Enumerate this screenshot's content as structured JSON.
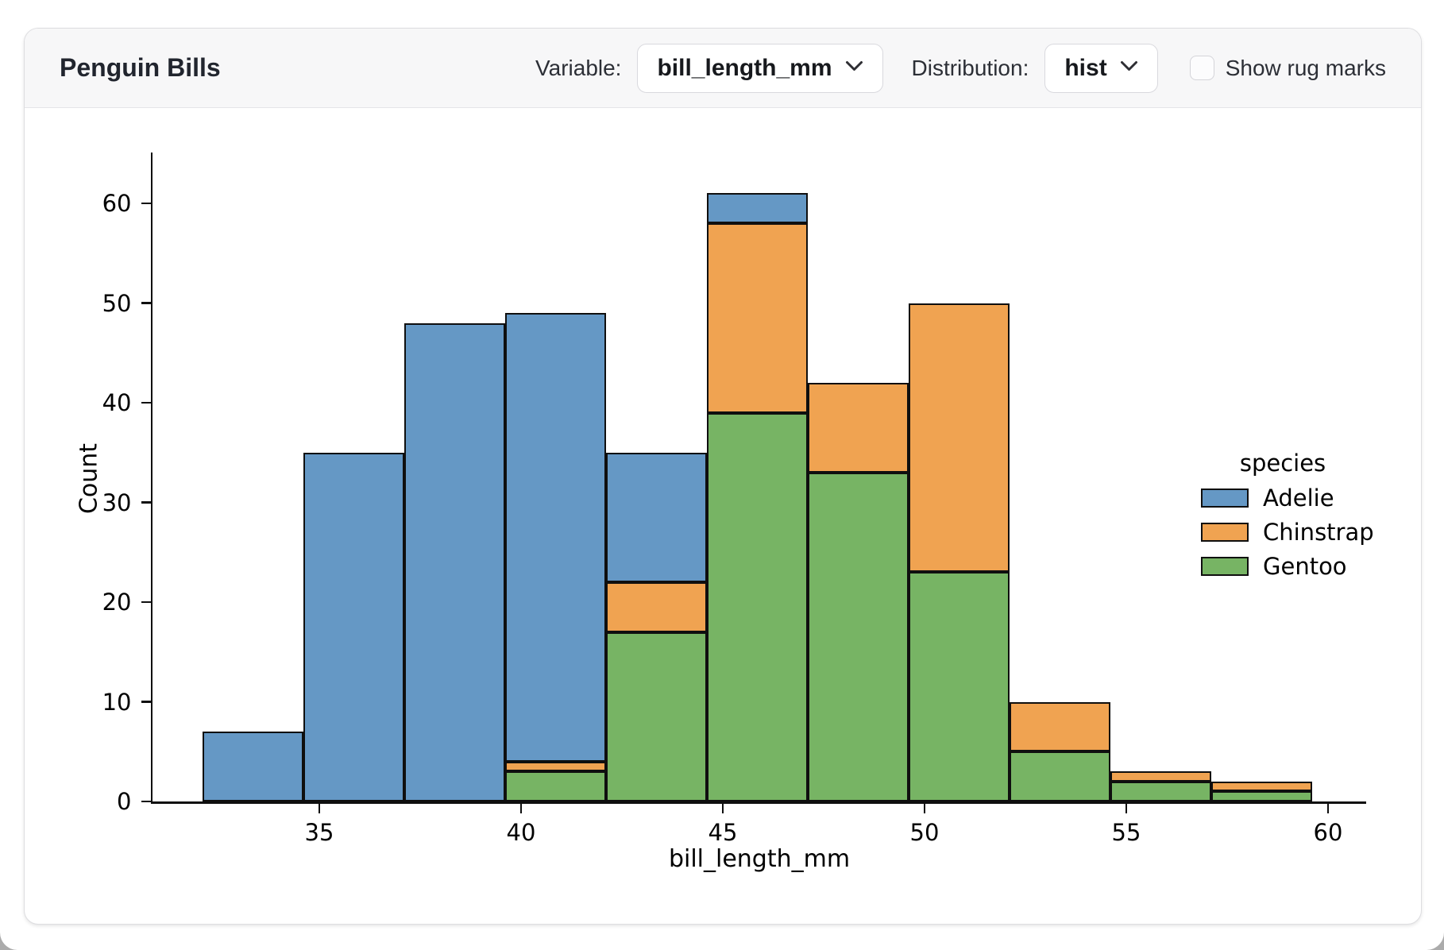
{
  "header": {
    "title": "Penguin Bills",
    "controls": {
      "variable": {
        "label": "Variable:",
        "value": "bill_length_mm"
      },
      "distribution": {
        "label": "Distribution:",
        "value": "hist"
      },
      "rug": {
        "label": "Show rug marks",
        "checked": false
      }
    }
  },
  "chart_data": {
    "type": "bar",
    "subtype": "stacked_histogram",
    "xlabel": "bill_length_mm",
    "ylabel": "Count",
    "bin_edges": [
      32.1,
      34.6,
      37.1,
      39.6,
      42.1,
      44.6,
      47.1,
      49.6,
      52.1,
      54.6,
      57.1,
      59.6
    ],
    "series": [
      {
        "name": "Adelie",
        "color": "#6598c5",
        "values": [
          7,
          35,
          48,
          45,
          13,
          3,
          0,
          0,
          0,
          0,
          0
        ]
      },
      {
        "name": "Chinstrap",
        "color": "#f0a351",
        "values": [
          0,
          0,
          0,
          1,
          5,
          19,
          9,
          27,
          5,
          1,
          1
        ]
      },
      {
        "name": "Gentoo",
        "color": "#77b464",
        "values": [
          0,
          0,
          0,
          3,
          17,
          39,
          33,
          23,
          5,
          2,
          1
        ]
      }
    ],
    "bin_totals": [
      7,
      35,
      48,
      49,
      35,
      61,
      42,
      50,
      10,
      3,
      2
    ],
    "stack_order_bottom_to_top": [
      "Gentoo",
      "Chinstrap",
      "Adelie"
    ],
    "x_ticks": [
      35,
      40,
      45,
      50,
      55,
      60
    ],
    "y_ticks": [
      0,
      10,
      20,
      30,
      40,
      50,
      60
    ],
    "xlim": [
      30.9,
      60.95
    ],
    "ylim": [
      0,
      65
    ],
    "grid": false,
    "edge_color": "#0f0f0f",
    "legend": {
      "title": "species",
      "entries": [
        "Adelie",
        "Chinstrap",
        "Gentoo"
      ],
      "position": "right"
    }
  }
}
